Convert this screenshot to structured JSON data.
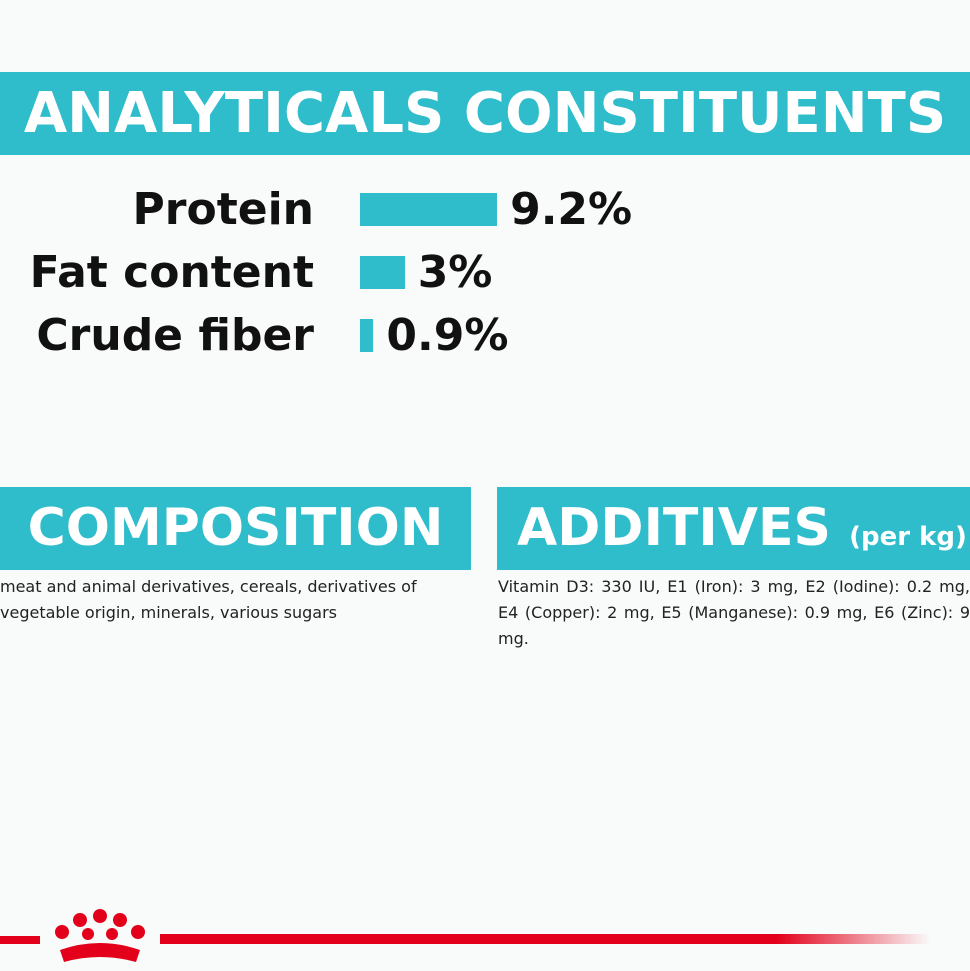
{
  "header": {
    "title": "ANALYTICALS CONSTITUENTS"
  },
  "analyticals": [
    {
      "label": "Protein",
      "value": 9.2,
      "value_label": "9.2%"
    },
    {
      "label": "Fat content",
      "value": 3,
      "value_label": "3%"
    },
    {
      "label": "Crude fiber",
      "value": 0.9,
      "value_label": "0.9%"
    }
  ],
  "composition": {
    "title": "COMPOSITION",
    "text": "meat and animal derivatives, cereals, derivatives of vegetable origin, minerals, various sugars"
  },
  "additives": {
    "title": "ADDITIVES",
    "subtitle": "(per kg)",
    "text": "Vitamin D3: 330 IU, E1 (Iron): 3 mg, E2 (Iodine): 0.2 mg, E4 (Copper): 2 mg, E5 (Manganese): 0.9 mg, E6 (Zinc): 9 mg."
  }
}
